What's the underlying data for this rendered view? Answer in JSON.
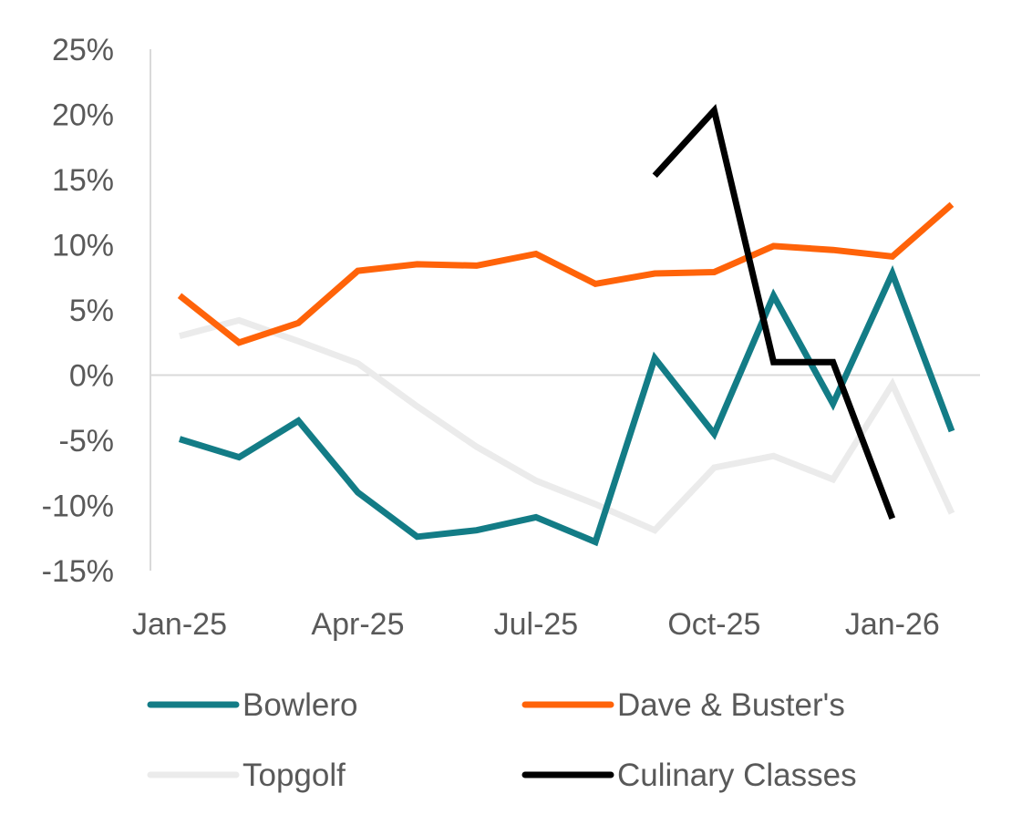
{
  "chart_data": {
    "type": "line",
    "x": [
      "Jan-25",
      "Feb-25",
      "Mar-25",
      "Apr-25",
      "May-25",
      "Jun-25",
      "Jul-25",
      "Aug-25",
      "Sep-25",
      "Oct-25",
      "Nov-25",
      "Dec-25",
      "Jan-26",
      "Feb-26"
    ],
    "x_tick_labels": [
      "Jan-25",
      "Apr-25",
      "Jul-25",
      "Oct-25",
      "Jan-26"
    ],
    "y_tick_labels": [
      "25%",
      "20%",
      "15%",
      "10%",
      "5%",
      "0%",
      "-5%",
      "-10%",
      "-15%"
    ],
    "ylim": [
      -15,
      25
    ],
    "y_unit": "%",
    "grid": false,
    "legend_position": "bottom",
    "series": [
      {
        "name": "Bowlero",
        "color": "#137C86",
        "values": [
          -4.9,
          -6.3,
          -3.5,
          -9.0,
          -12.4,
          -11.9,
          -10.9,
          -12.8,
          1.3,
          -4.5,
          6.1,
          -2.2,
          7.8,
          -4.3
        ]
      },
      {
        "name": "Dave & Buster's",
        "color": "#FF6309",
        "values": [
          6.1,
          2.5,
          4.0,
          8.0,
          8.5,
          8.4,
          9.3,
          7.0,
          7.8,
          7.9,
          9.9,
          9.6,
          9.1,
          13.1
        ]
      },
      {
        "name": "Topgolf",
        "color": "#EBEBEB",
        "values": [
          3.0,
          4.2,
          2.6,
          0.9,
          -2.4,
          -5.5,
          -8.1,
          -9.9,
          -11.9,
          -7.1,
          -6.2,
          -8.0,
          -0.7,
          -10.6
        ]
      },
      {
        "name": "Culinary Classes",
        "color": "#000000",
        "values": [
          null,
          null,
          null,
          null,
          null,
          null,
          null,
          null,
          15.3,
          20.3,
          1.0,
          1.0,
          -11.0,
          null
        ]
      }
    ]
  }
}
